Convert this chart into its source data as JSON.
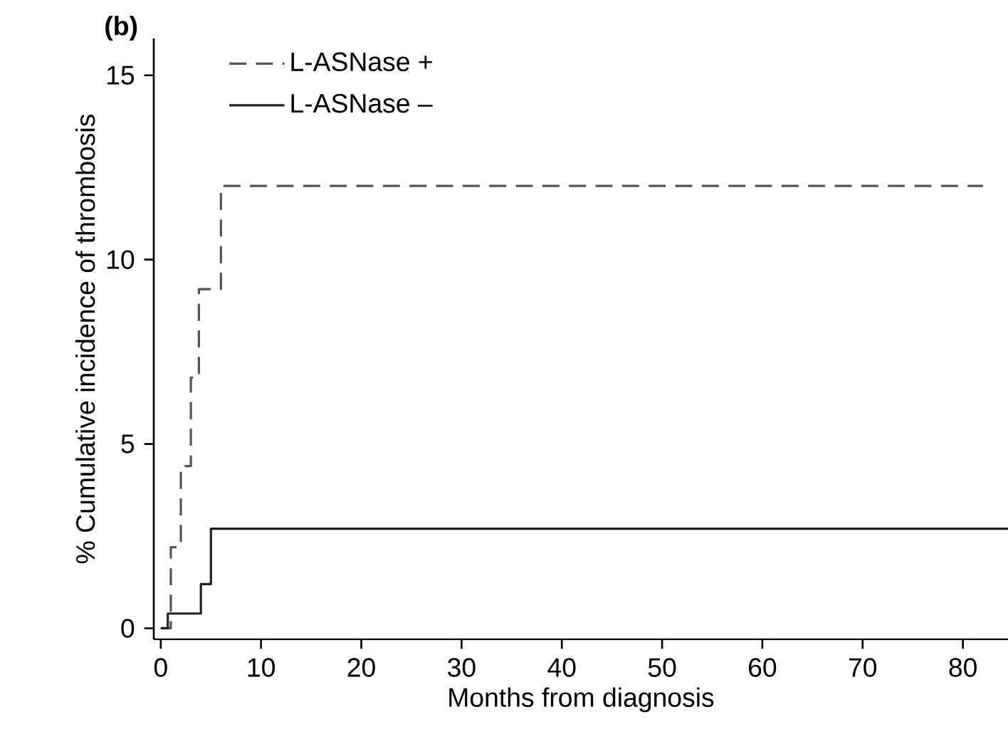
{
  "chart_data": {
    "type": "step",
    "xlabel": "Months from diagnosis",
    "ylabel": "% Cumulative incidence of thrombosis",
    "annotations": [
      "(b)"
    ],
    "series": [
      {
        "name": "L-ASNase +",
        "color": "#555555",
        "line_style": "dashed",
        "x": [
          0,
          1,
          2,
          3,
          3.8,
          6,
          82
        ],
        "values": [
          0,
          2.2,
          4.4,
          6.8,
          9.2,
          12,
          12
        ]
      },
      {
        "name": "L-ASNase –",
        "color": "#222222",
        "line_style": "solid",
        "x": [
          0,
          0.7,
          4,
          5,
          84.5
        ],
        "values": [
          0,
          0.4,
          1.2,
          2.7,
          2.7
        ]
      }
    ],
    "xlim": [
      -0.7,
      84.5
    ],
    "ylim": [
      -0.3,
      16
    ],
    "xticks": [
      0,
      10,
      20,
      30,
      40,
      50,
      60,
      70,
      80
    ],
    "yticks": [
      0,
      5,
      10,
      15
    ],
    "grid": false,
    "legend": "top left",
    "marker": "none"
  }
}
